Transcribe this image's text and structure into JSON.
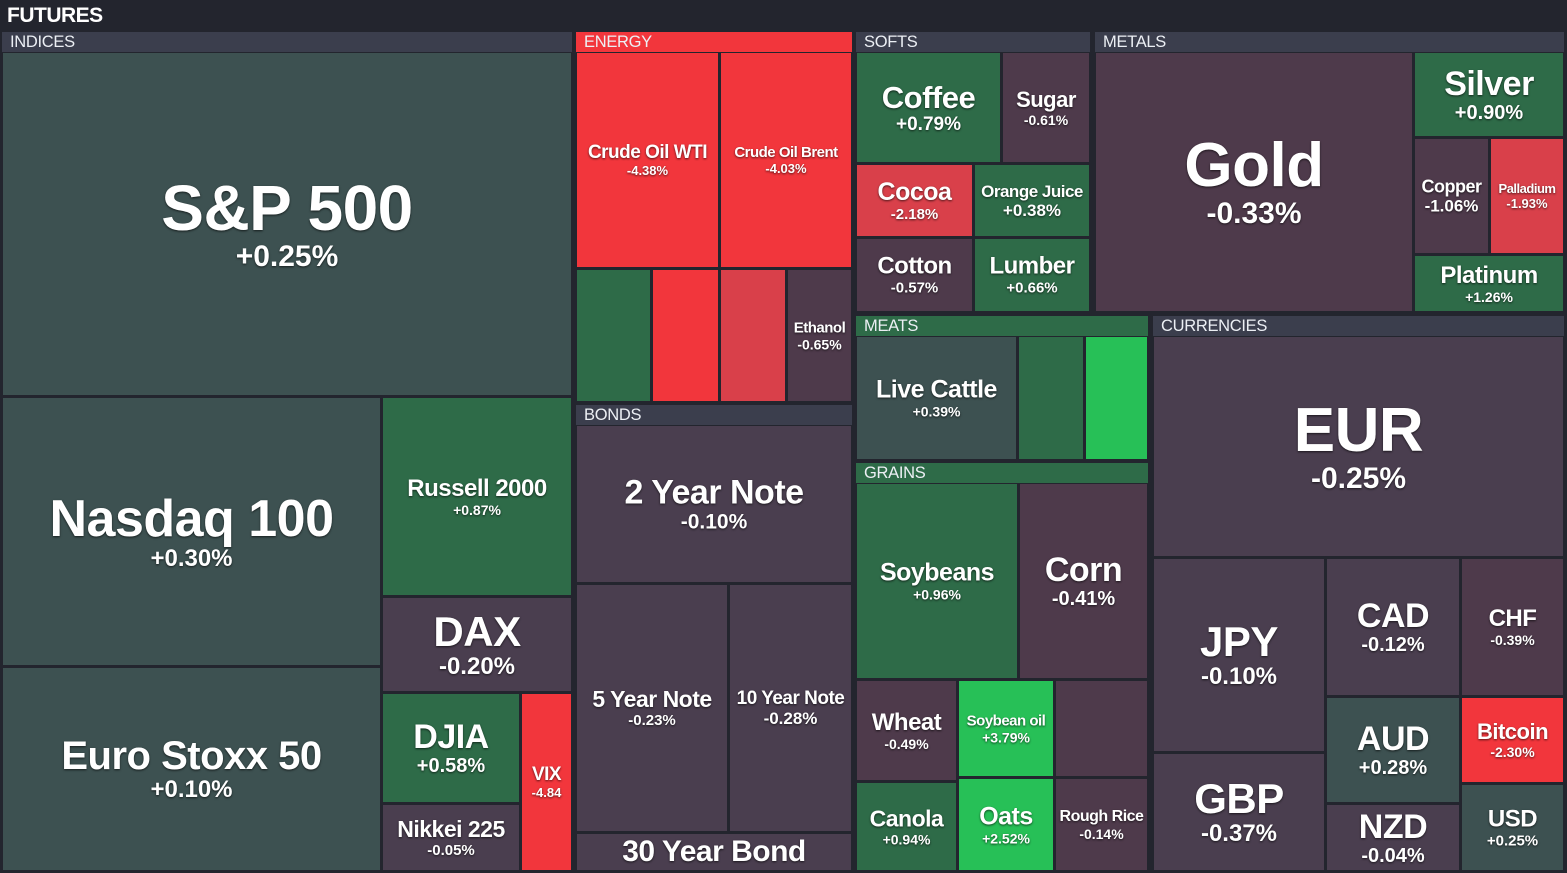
{
  "title": "FUTURES",
  "chart_data": {
    "type": "treemap",
    "title": "FUTURES",
    "colors": {
      "background": "#23252e",
      "strong_red": "#f2363c",
      "red": "#d9404a",
      "dark_red": "#4e3a4b",
      "neutral_dark": "#4a3e4f",
      "neutral_slate": "#3d5151",
      "green": "#2e6b48",
      "bright_green": "#27c057"
    },
    "sectors": [
      {
        "name": "INDICES",
        "items": [
          {
            "name": "S&P 500",
            "change": "+0.25%",
            "value": 0.25
          },
          {
            "name": "Nasdaq 100",
            "change": "+0.30%",
            "value": 0.3
          },
          {
            "name": "Russell 2000",
            "change": "+0.87%",
            "value": 0.87
          },
          {
            "name": "DAX",
            "change": "-0.20%",
            "value": -0.2
          },
          {
            "name": "Euro Stoxx 50",
            "change": "+0.10%",
            "value": 0.1
          },
          {
            "name": "DJIA",
            "change": "+0.58%",
            "value": 0.58
          },
          {
            "name": "VIX",
            "change": "-4.84",
            "value": -4.84
          },
          {
            "name": "Nikkei 225",
            "change": "-0.05%",
            "value": -0.05
          }
        ]
      },
      {
        "name": "ENERGY",
        "items": [
          {
            "name": "Crude Oil WTI",
            "change": "-4.38%",
            "value": -4.38
          },
          {
            "name": "Crude Oil Brent",
            "change": "-4.03%",
            "value": -4.03
          },
          {
            "name": "Ethanol",
            "change": "-0.65%",
            "value": -0.65
          }
        ]
      },
      {
        "name": "BONDS",
        "items": [
          {
            "name": "2 Year Note",
            "change": "-0.10%",
            "value": -0.1
          },
          {
            "name": "5 Year Note",
            "change": "-0.23%",
            "value": -0.23
          },
          {
            "name": "10 Year Note",
            "change": "-0.28%",
            "value": -0.28
          },
          {
            "name": "30 Year Bond",
            "change": "",
            "value": null
          }
        ]
      },
      {
        "name": "SOFTS",
        "items": [
          {
            "name": "Coffee",
            "change": "+0.79%",
            "value": 0.79
          },
          {
            "name": "Sugar",
            "change": "-0.61%",
            "value": -0.61
          },
          {
            "name": "Cocoa",
            "change": "-2.18%",
            "value": -2.18
          },
          {
            "name": "Orange Juice",
            "change": "+0.38%",
            "value": 0.38
          },
          {
            "name": "Cotton",
            "change": "-0.57%",
            "value": -0.57
          },
          {
            "name": "Lumber",
            "change": "+0.66%",
            "value": 0.66
          }
        ]
      },
      {
        "name": "METALS",
        "items": [
          {
            "name": "Gold",
            "change": "-0.33%",
            "value": -0.33
          },
          {
            "name": "Silver",
            "change": "+0.90%",
            "value": 0.9
          },
          {
            "name": "Copper",
            "change": "-1.06%",
            "value": -1.06
          },
          {
            "name": "Palladium",
            "change": "-1.93%",
            "value": -1.93
          },
          {
            "name": "Platinum",
            "change": "+1.26%",
            "value": 1.26
          }
        ]
      },
      {
        "name": "MEATS",
        "items": [
          {
            "name": "Live Cattle",
            "change": "+0.39%",
            "value": 0.39
          }
        ]
      },
      {
        "name": "GRAINS",
        "items": [
          {
            "name": "Soybeans",
            "change": "+0.96%",
            "value": 0.96
          },
          {
            "name": "Corn",
            "change": "-0.41%",
            "value": -0.41
          },
          {
            "name": "Wheat",
            "change": "-0.49%",
            "value": -0.49
          },
          {
            "name": "Soybean oil",
            "change": "+3.79%",
            "value": 3.79
          },
          {
            "name": "Canola",
            "change": "+0.94%",
            "value": 0.94
          },
          {
            "name": "Oats",
            "change": "+2.52%",
            "value": 2.52
          },
          {
            "name": "Rough Rice",
            "change": "-0.14%",
            "value": -0.14
          }
        ]
      },
      {
        "name": "CURRENCIES",
        "items": [
          {
            "name": "EUR",
            "change": "-0.25%",
            "value": -0.25
          },
          {
            "name": "JPY",
            "change": "-0.10%",
            "value": -0.1
          },
          {
            "name": "CAD",
            "change": "-0.12%",
            "value": -0.12
          },
          {
            "name": "CHF",
            "change": "-0.39%",
            "value": -0.39
          },
          {
            "name": "AUD",
            "change": "+0.28%",
            "value": 0.28
          },
          {
            "name": "Bitcoin",
            "change": "-2.30%",
            "value": -2.3
          },
          {
            "name": "GBP",
            "change": "-0.37%",
            "value": -0.37
          },
          {
            "name": "NZD",
            "change": "-0.04%",
            "value": -0.04
          },
          {
            "name": "USD",
            "change": "+0.25%",
            "value": 0.25
          }
        ]
      }
    ]
  }
}
